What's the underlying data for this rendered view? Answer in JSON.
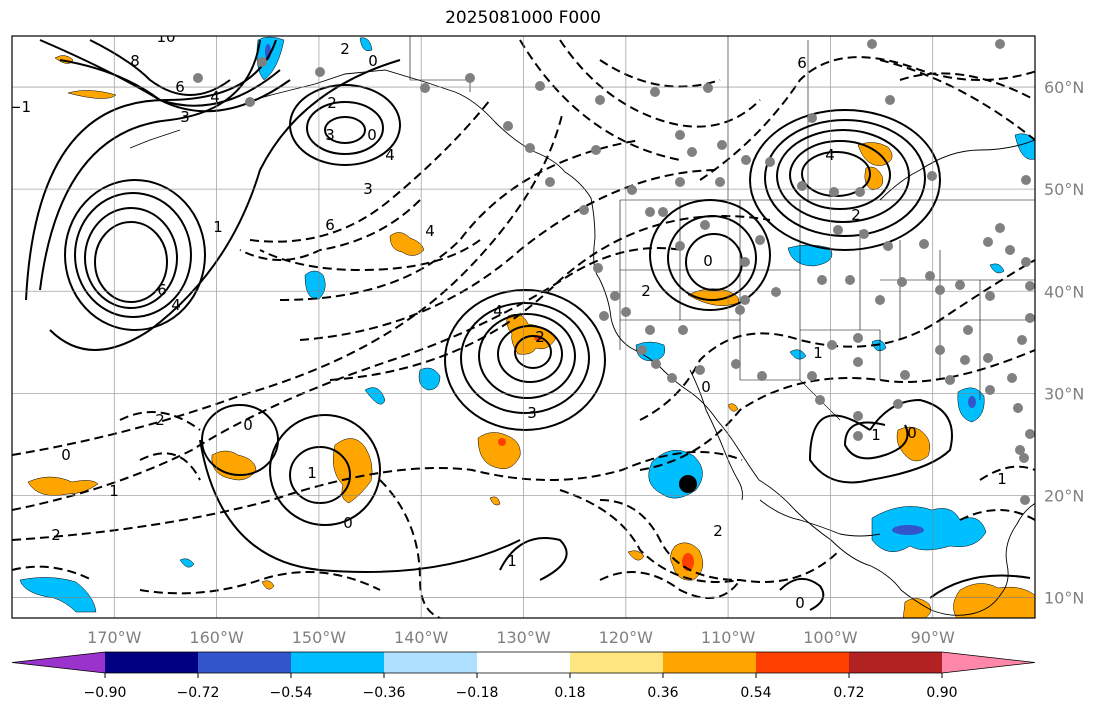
{
  "title": "2025081000 F000",
  "map": {
    "lon_range": [
      -180,
      -80
    ],
    "lat_range": [
      8,
      65
    ],
    "lon_ticks": [
      -170,
      -160,
      -150,
      -140,
      -130,
      -120,
      -110,
      -100,
      -90
    ],
    "lon_labels": [
      "170°W",
      "160°W",
      "150°W",
      "140°W",
      "130°W",
      "120°W",
      "110°W",
      "100°W",
      "90°W"
    ],
    "lat_ticks": [
      10,
      20,
      30,
      40,
      50,
      60
    ],
    "lat_labels": [
      "10°N",
      "20°N",
      "30°N",
      "40°N",
      "50°N",
      "60°N"
    ],
    "grid": true
  },
  "colorbar": {
    "extend": "both",
    "colors": [
      "#9933cc",
      "#000080",
      "#3355cc",
      "#00bfff",
      "#b0e0ff",
      "#ffffff",
      "#ffe680",
      "#ffa500",
      "#ff4000",
      "#b22222",
      "#ff88aa"
    ],
    "tick_labels": [
      "−0.90",
      "−0.72",
      "−0.54",
      "−0.36",
      "−0.18",
      "0.18",
      "0.36",
      "0.54",
      "0.72",
      "0.90"
    ]
  },
  "contour_labels": [
    "10",
    "8",
    "6",
    "4",
    "3",
    "2",
    "0",
    "−1",
    "2",
    "0",
    "3",
    "4",
    "3",
    "4",
    "6",
    "6",
    "4",
    "1",
    "2",
    "0",
    "1",
    "1",
    "2",
    "0",
    "0",
    "2",
    "3",
    "4",
    "6",
    "4",
    "2",
    "0",
    "2",
    "0",
    "1",
    "1",
    "0",
    "1",
    "2",
    "0",
    "1"
  ],
  "station_dots_color": "#808080",
  "marker": "black-dot"
}
